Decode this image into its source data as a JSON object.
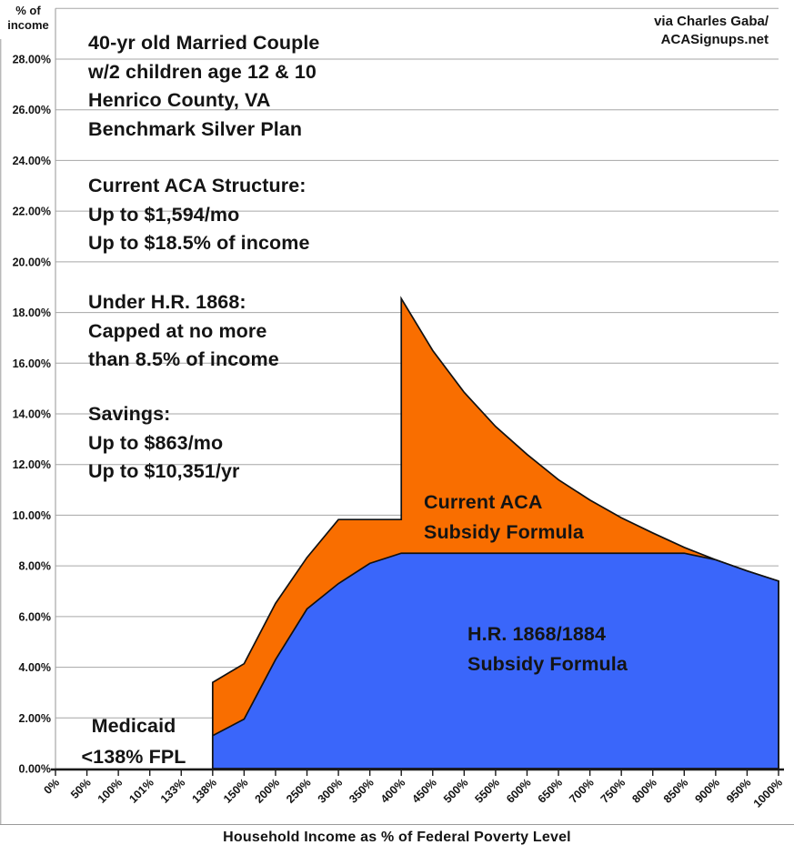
{
  "attribution": {
    "line1": "via Charles Gaba/",
    "line2": "ACASignups.net"
  },
  "y_axis_unit": {
    "line1": "% of",
    "line2": "income"
  },
  "x_axis_title": "Household Income as % of Federal Poverty Level",
  "annotations": {
    "scenario": [
      "40-yr old Married Couple",
      "w/2 children age 12 & 10",
      "Henrico County, VA",
      "Benchmark Silver Plan"
    ],
    "current_structure": [
      "Current ACA Structure:",
      "Up to $1,594/mo",
      "Up to $18.5% of income"
    ],
    "hr1868": [
      "Under H.R. 1868:",
      "Capped at no more",
      "than 8.5% of income"
    ],
    "savings": [
      "Savings:",
      "Up to $863/mo",
      "Up to $10,351/yr"
    ],
    "medicaid": [
      "Medicaid",
      "<138% FPL"
    ],
    "orange_area_label": [
      "Current ACA",
      "Subsidy Formula"
    ],
    "blue_area_label": [
      "H.R. 1868/1884",
      "Subsidy Formula"
    ]
  },
  "colors": {
    "current_aca_orange": "#F96E00",
    "hr1868_blue": "#3A66FA",
    "gridline_gray": "#A6A6A6",
    "axis_dark": "#1A1A1A",
    "text_black": "#141414"
  },
  "chart_data": {
    "type": "area",
    "xlabel": "Household Income as % of Federal Poverty Level",
    "ylabel": "% of income",
    "ylim": [
      0,
      30
    ],
    "y_tick_step": 2,
    "y_tick_labels": [
      "0.00%",
      "2.00%",
      "4.00%",
      "6.00%",
      "8.00%",
      "10.00%",
      "12.00%",
      "14.00%",
      "16.00%",
      "18.00%",
      "20.00%",
      "22.00%",
      "24.00%",
      "26.00%",
      "28.00%"
    ],
    "categories": [
      "0%",
      "50%",
      "100%",
      "101%",
      "133%",
      "138%",
      "150%",
      "200%",
      "250%",
      "300%",
      "350%",
      "400%",
      "450%",
      "500%",
      "550%",
      "600%",
      "650%",
      "700%",
      "750%",
      "800%",
      "850%",
      "900%",
      "950%",
      "1000%"
    ],
    "grid": true,
    "legend_position": "labels-inside-areas",
    "series": [
      {
        "name": "Current ACA Subsidy Formula",
        "color": "#F96E00",
        "points": [
          [
            "138%",
            3.4
          ],
          [
            "150%",
            4.14
          ],
          [
            "200%",
            6.52
          ],
          [
            "250%",
            8.33
          ],
          [
            "300%",
            9.83
          ],
          [
            "350%",
            9.83
          ],
          [
            "400%",
            9.83
          ],
          [
            "400%",
            18.55
          ],
          [
            "450%",
            16.5
          ],
          [
            "500%",
            14.85
          ],
          [
            "550%",
            13.5
          ],
          [
            "600%",
            12.4
          ],
          [
            "650%",
            11.4
          ],
          [
            "700%",
            10.6
          ],
          [
            "750%",
            9.9
          ],
          [
            "800%",
            9.3
          ],
          [
            "850%",
            8.73
          ],
          [
            "900%",
            8.24
          ],
          [
            "950%",
            7.8
          ],
          [
            "1000%",
            7.4
          ]
        ]
      },
      {
        "name": "H.R. 1868/1884 Subsidy Formula",
        "color": "#3A66FA",
        "points": [
          [
            "138%",
            1.3
          ],
          [
            "150%",
            1.95
          ],
          [
            "200%",
            4.3
          ],
          [
            "250%",
            6.3
          ],
          [
            "300%",
            7.3
          ],
          [
            "350%",
            8.1
          ],
          [
            "400%",
            8.5
          ],
          [
            "450%",
            8.5
          ],
          [
            "500%",
            8.5
          ],
          [
            "550%",
            8.5
          ],
          [
            "600%",
            8.5
          ],
          [
            "650%",
            8.5
          ],
          [
            "700%",
            8.5
          ],
          [
            "750%",
            8.5
          ],
          [
            "800%",
            8.5
          ],
          [
            "850%",
            8.5
          ],
          [
            "900%",
            8.24
          ],
          [
            "950%",
            7.8
          ],
          [
            "1000%",
            7.4
          ]
        ]
      }
    ]
  }
}
